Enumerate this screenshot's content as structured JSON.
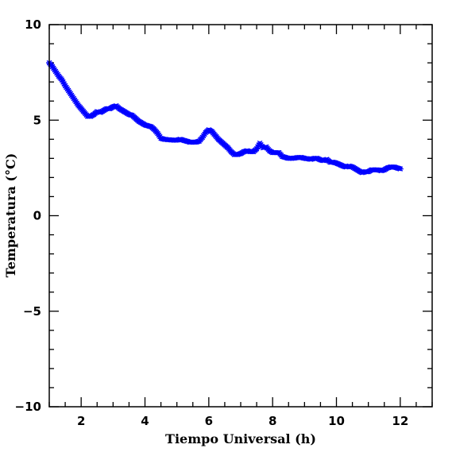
{
  "chart_data": {
    "type": "scatter",
    "title": "",
    "xlabel": "Tiempo Universal (h)",
    "ylabel": "Temperatura (°C)",
    "xlim": [
      1,
      13
    ],
    "ylim": [
      -10,
      10
    ],
    "x_ticks": [
      {
        "value": 2,
        "label": "2"
      },
      {
        "value": 4,
        "label": "4"
      },
      {
        "value": 6,
        "label": "6"
      },
      {
        "value": 8,
        "label": "8"
      },
      {
        "value": 10,
        "label": "10"
      },
      {
        "value": 12,
        "label": "12"
      }
    ],
    "y_ticks": [
      {
        "value": -10,
        "label": "−10"
      },
      {
        "value": -5,
        "label": "−5"
      },
      {
        "value": 0,
        "label": "0"
      },
      {
        "value": 5,
        "label": "5"
      },
      {
        "value": 10,
        "label": "10"
      }
    ],
    "grid": false,
    "legend": "none",
    "marker": "asterisk",
    "color": "#0000ff",
    "series": [
      {
        "x": [
          1.0,
          1.1,
          1.2,
          1.3,
          1.4,
          1.5,
          1.6,
          1.7,
          1.8,
          1.9,
          2.0,
          2.1,
          2.2,
          2.3,
          2.4,
          2.5,
          2.6,
          2.7,
          2.8,
          2.9,
          3.0,
          3.1,
          3.2,
          3.3,
          3.4,
          3.5,
          3.6,
          3.7,
          3.8,
          3.9,
          4.0,
          4.1,
          4.2,
          4.3,
          4.4,
          4.5,
          4.6,
          4.7,
          4.8,
          4.9,
          5.0,
          5.1,
          5.2,
          5.3,
          5.4,
          5.5,
          5.6,
          5.7,
          5.8,
          5.9,
          6.0,
          6.1,
          6.2,
          6.3,
          6.4,
          6.5,
          6.6,
          6.7,
          6.8,
          6.9,
          7.0,
          7.1,
          7.2,
          7.3,
          7.4,
          7.5,
          7.6,
          7.7,
          7.8,
          7.9,
          8.0,
          8.1,
          8.2,
          8.3,
          8.4,
          8.5,
          8.6,
          8.7,
          8.8,
          8.9,
          9.0,
          9.1,
          9.2,
          9.3,
          9.4,
          9.5,
          9.6,
          9.7,
          9.8,
          9.9,
          10.0,
          10.1,
          10.2,
          10.3,
          10.4,
          10.5,
          10.6,
          10.7,
          10.8,
          10.9,
          11.0,
          11.1,
          11.2,
          11.3,
          11.4,
          11.5,
          11.6,
          11.7,
          11.8,
          11.9,
          12.0
        ],
        "y": [
          8.0,
          7.8,
          7.55,
          7.3,
          7.1,
          6.8,
          6.55,
          6.3,
          6.05,
          5.8,
          5.6,
          5.4,
          5.2,
          5.2,
          5.3,
          5.45,
          5.4,
          5.5,
          5.6,
          5.6,
          5.7,
          5.75,
          5.6,
          5.5,
          5.4,
          5.3,
          5.25,
          5.1,
          4.95,
          4.85,
          4.75,
          4.7,
          4.65,
          4.5,
          4.3,
          4.05,
          4.0,
          3.98,
          3.97,
          3.95,
          3.95,
          4.0,
          3.95,
          3.9,
          3.85,
          3.85,
          3.85,
          3.9,
          4.1,
          4.35,
          4.5,
          4.4,
          4.2,
          4.0,
          3.85,
          3.7,
          3.55,
          3.35,
          3.2,
          3.2,
          3.25,
          3.35,
          3.4,
          3.35,
          3.35,
          3.5,
          3.8,
          3.55,
          3.6,
          3.4,
          3.3,
          3.3,
          3.3,
          3.1,
          3.05,
          3.0,
          3.0,
          3.02,
          3.05,
          3.05,
          3.0,
          2.98,
          2.95,
          3.0,
          3.0,
          2.92,
          2.88,
          2.95,
          2.8,
          2.8,
          2.75,
          2.68,
          2.6,
          2.55,
          2.6,
          2.55,
          2.45,
          2.35,
          2.25,
          2.3,
          2.3,
          2.4,
          2.4,
          2.4,
          2.35,
          2.4,
          2.5,
          2.55,
          2.55,
          2.5,
          2.45
        ]
      }
    ]
  }
}
